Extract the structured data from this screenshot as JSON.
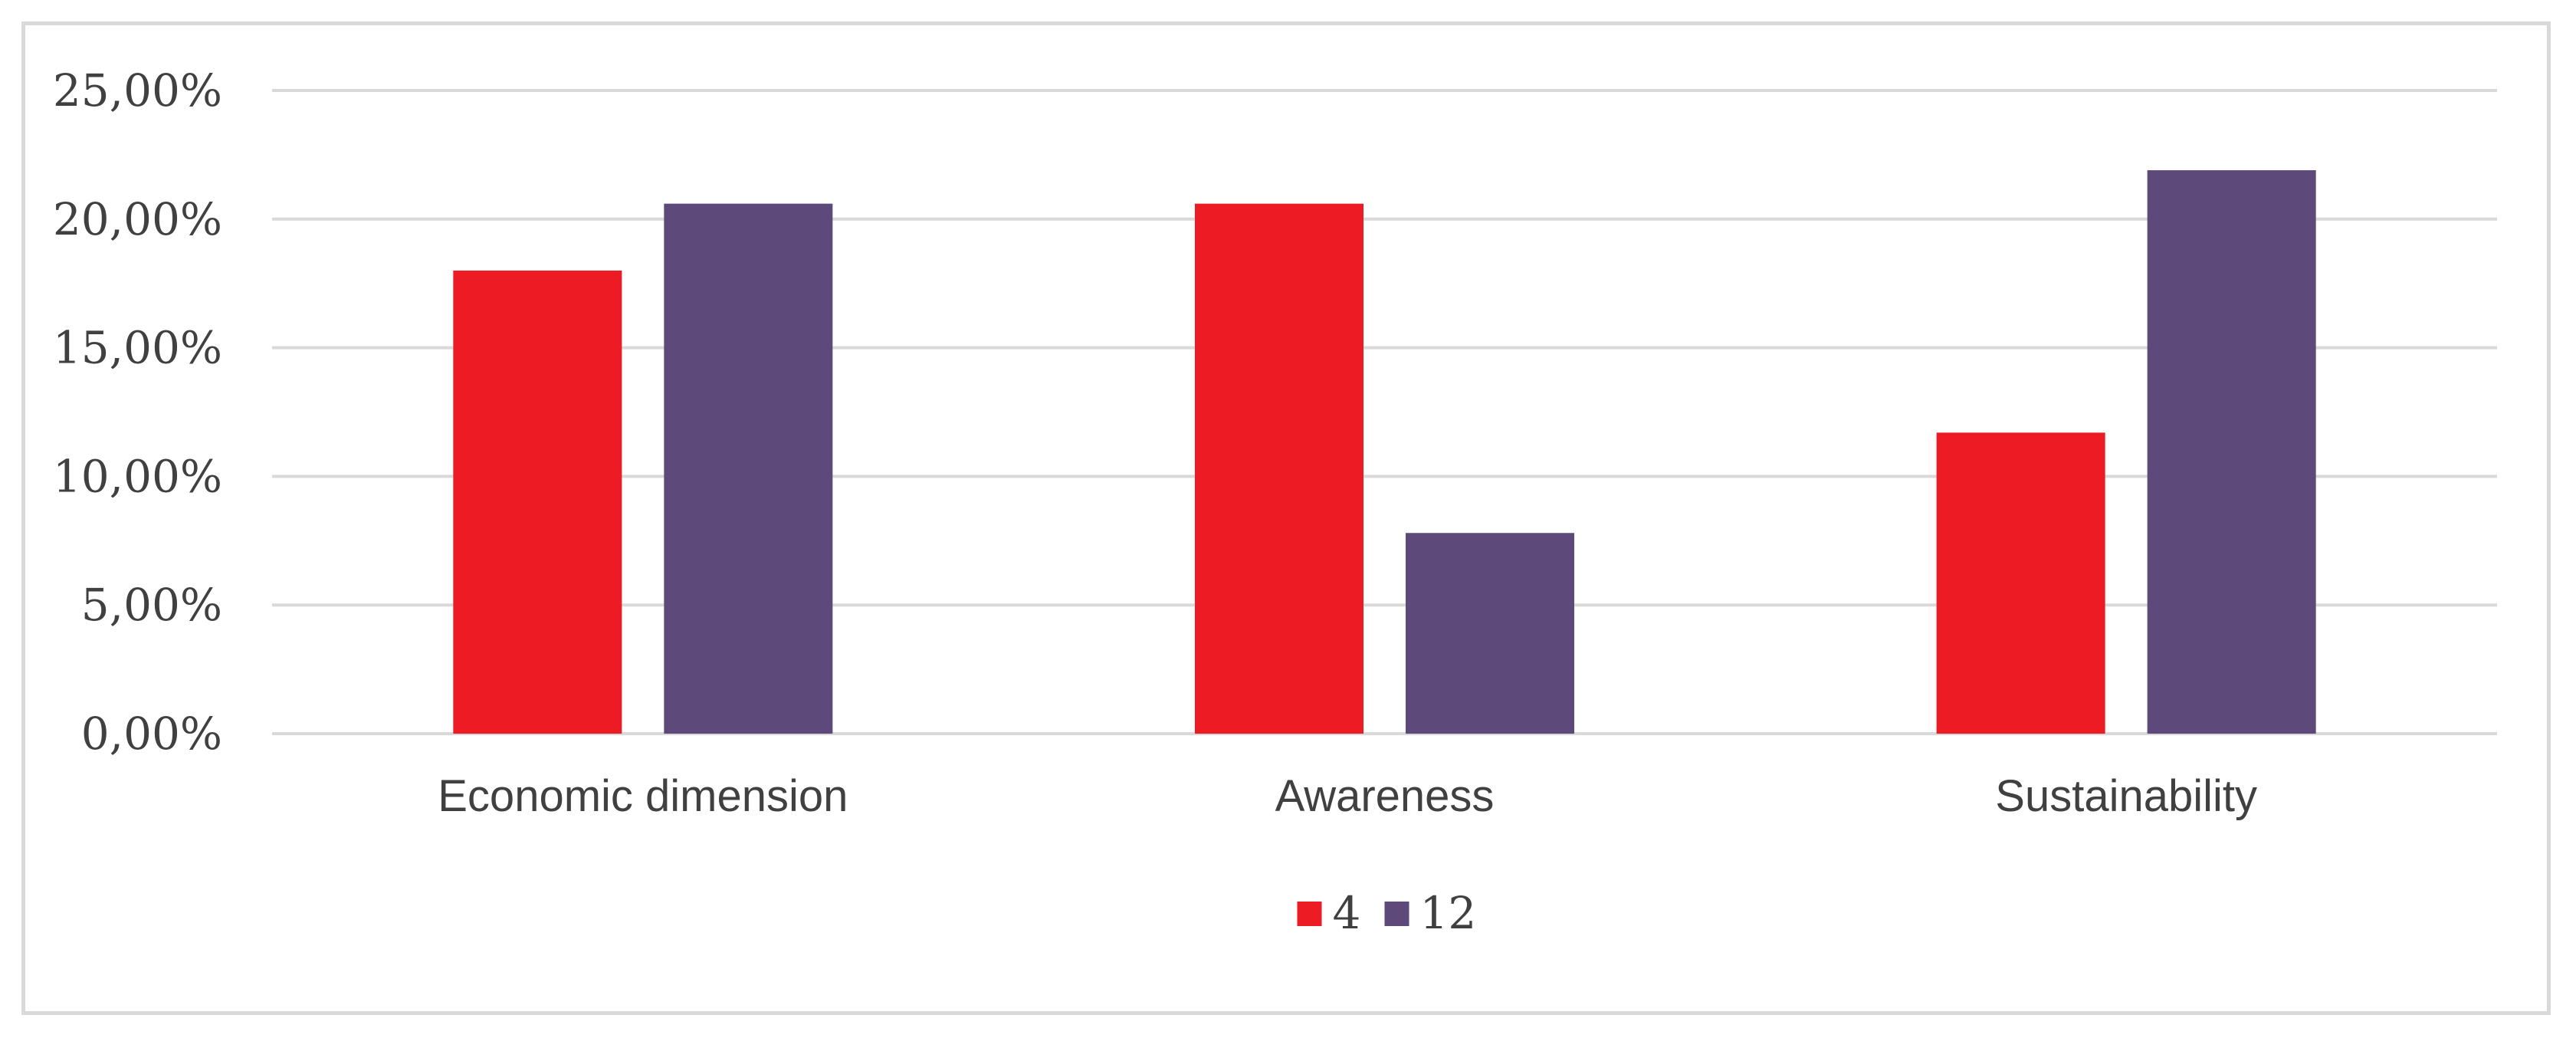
{
  "chart_data": {
    "type": "bar",
    "categories": [
      "Economic dimension",
      "Awareness",
      "Sustainability"
    ],
    "series": [
      {
        "name": "4",
        "color": "#ED1C24",
        "values": [
          0.18,
          0.206,
          0.117
        ]
      },
      {
        "name": "12",
        "color": "#5E4A7A",
        "values": [
          0.206,
          0.078,
          0.219
        ]
      }
    ],
    "ylim": [
      0,
      0.25
    ],
    "yticks": [
      0,
      0.05,
      0.1,
      0.15,
      0.2,
      0.25
    ],
    "ytick_labels": [
      "0,00%",
      "5,00%",
      "10,00%",
      "15,00%",
      "20,00%",
      "25,00%"
    ],
    "title": "",
    "xlabel": "",
    "ylabel": "",
    "grid": true,
    "gridline_color": "#d9d9d9",
    "legend_position": "bottom-center"
  }
}
